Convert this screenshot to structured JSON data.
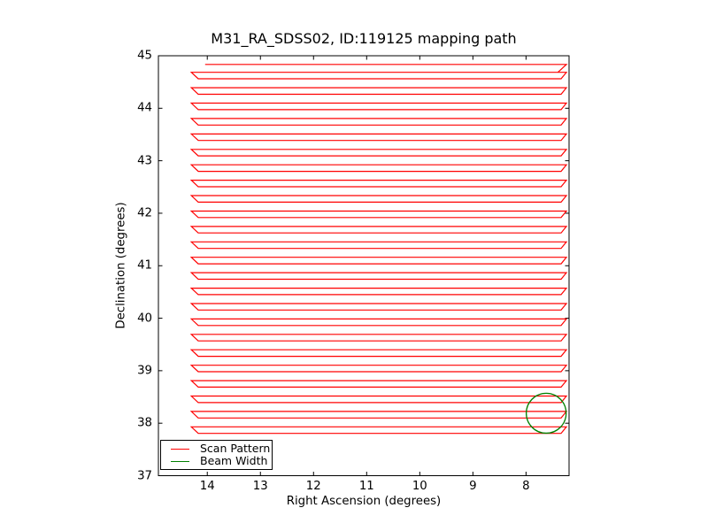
{
  "chart_data": {
    "type": "line",
    "title": "M31_RA_SDSS02, ID:119125 mapping path",
    "xlabel": "Right Ascension (degrees)",
    "ylabel": "Declination (degrees)",
    "x_axis_inverted": true,
    "xlim": [
      14.92,
      7.19
    ],
    "ylim": [
      37,
      45
    ],
    "xticks": [
      14,
      13,
      12,
      11,
      10,
      9,
      8
    ],
    "yticks": [
      37,
      38,
      39,
      40,
      41,
      42,
      43,
      44,
      45
    ],
    "grid": false,
    "legend_position": "lower left",
    "frame_color": "#000000",
    "series": [
      {
        "name": "Scan Pattern",
        "color": "#ff0000",
        "kind": "serpentine_raster",
        "n_loops": 24,
        "loop_top_dec_first": 44.685,
        "loop_dec_step": 0.2937,
        "loop_dec_height": 0.124,
        "ra_left_vertex": 14.3,
        "ra_left_inset": 14.17,
        "ra_right_extreme": 7.24,
        "ra_right_inset": 7.34,
        "lead_in": {
          "dec": 44.835,
          "ra_start": 14.04,
          "ra_end": 7.24,
          "joins_ra": 7.4,
          "joins_dec": 44.685
        }
      },
      {
        "name": "Beam Width",
        "color": "#008000",
        "kind": "circle",
        "center_ra": 7.62,
        "center_dec": 38.19,
        "radius_deg": 0.38
      }
    ]
  },
  "legend": {
    "items": [
      {
        "label": "Scan Pattern",
        "color": "#ff0000"
      },
      {
        "label": "Beam Width",
        "color": "#008000"
      }
    ]
  }
}
